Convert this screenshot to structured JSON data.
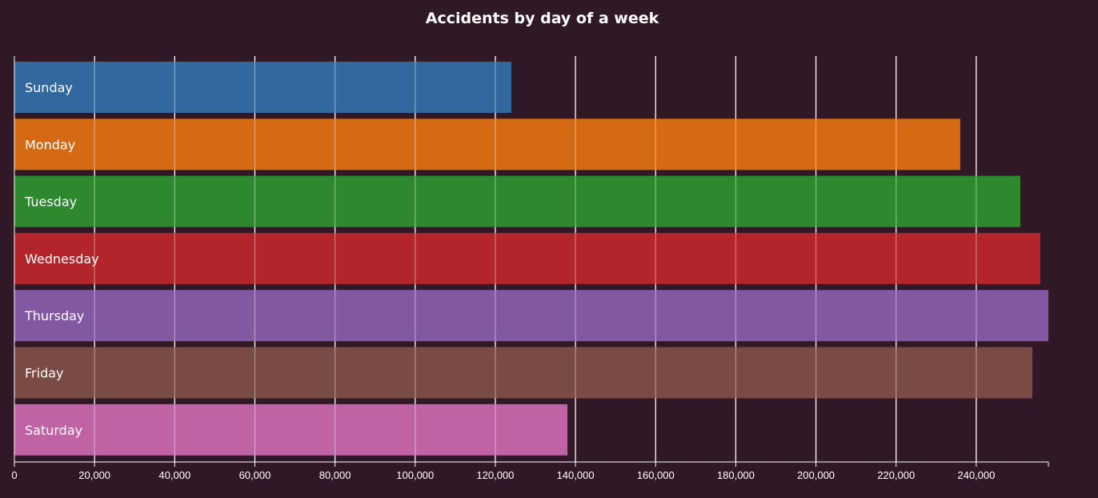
{
  "chart_data": {
    "type": "bar",
    "orientation": "horizontal",
    "title": "Accidents by day of a week",
    "categories": [
      "Sunday",
      "Monday",
      "Tuesday",
      "Wednesday",
      "Thursday",
      "Friday",
      "Saturday"
    ],
    "values": [
      124000,
      236000,
      251000,
      256000,
      258000,
      254000,
      138000
    ],
    "colors": [
      "#31689d",
      "#d46a14",
      "#2e892e",
      "#b1252b",
      "#8258a2",
      "#7a4b45",
      "#c063a5"
    ],
    "xlim": [
      0,
      258000
    ],
    "xticks": [
      0,
      20000,
      40000,
      60000,
      80000,
      100000,
      120000,
      140000,
      160000,
      180000,
      200000,
      220000,
      240000
    ],
    "xtick_labels": [
      "0",
      "20,000",
      "40,000",
      "60,000",
      "80,000",
      "100,000",
      "120,000",
      "140,000",
      "160,000",
      "180,000",
      "200,000",
      "220,000",
      "240,000"
    ],
    "grid": true,
    "xlabel": "",
    "ylabel": ""
  }
}
